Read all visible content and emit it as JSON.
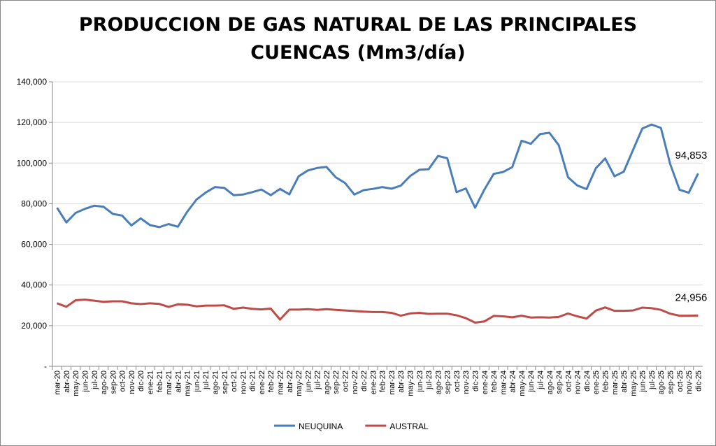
{
  "chart_data": {
    "type": "line",
    "title": [
      "PRODUCCION DE GAS NATURAL DE LAS PRINCIPALES",
      "CUENCAS (Mm3/día)"
    ],
    "categories": [
      "mar-20",
      "abr-20",
      "may-20",
      "jun-20",
      "jul-20",
      "ago-20",
      "sep-20",
      "oct-20",
      "nov-20",
      "dic-20",
      "ene-21",
      "feb-21",
      "mar-21",
      "abr-21",
      "may-21",
      "jun-21",
      "jul-21",
      "ago-21",
      "sep-21",
      "oct-21",
      "nov-21",
      "dic-21",
      "ene-22",
      "feb-22",
      "mar-22",
      "abr-22",
      "may-22",
      "jun-22",
      "jul-22",
      "ago-22",
      "sep-22",
      "oct-22",
      "nov-22",
      "dic-22",
      "ene-23",
      "feb-23",
      "mar-23",
      "abr-23",
      "may-23",
      "jun-23",
      "jul-23",
      "ago-23",
      "sep-23",
      "oct-23",
      "nov-23",
      "dic-23",
      "ene-24",
      "feb-24",
      "mar-24",
      "abr-24",
      "may-24",
      "jun-24",
      "jul-24",
      "ago-24",
      "sep-24",
      "oct-24",
      "nov-24",
      "dic-24",
      "ene-25",
      "feb-25",
      "mar-25",
      "abr-25",
      "may-25",
      "jun-25",
      "jul-25",
      "ago-25",
      "sep-25",
      "oct-25",
      "nov-25",
      "dic-25"
    ],
    "series": [
      {
        "name": "NEUQUINA",
        "color": "#4a7ebb",
        "values": [
          78000,
          70800,
          75500,
          77500,
          79000,
          78500,
          75000,
          74200,
          69300,
          72800,
          69500,
          68500,
          70000,
          68700,
          76000,
          82000,
          85500,
          88200,
          87800,
          84200,
          84500,
          85700,
          87000,
          84200,
          87300,
          84600,
          93500,
          96400,
          97600,
          98100,
          93000,
          90200,
          84500,
          86700,
          87300,
          88200,
          87400,
          88900,
          93600,
          96700,
          97000,
          103500,
          102400,
          85700,
          87500,
          78000,
          87000,
          94700,
          95600,
          98000,
          111000,
          109500,
          114300,
          114900,
          108800,
          93000,
          89000,
          87200,
          97500,
          102300,
          93500,
          95800,
          106500,
          117000,
          119000,
          117300,
          99500,
          86900,
          85400,
          94853
        ],
        "value_labels": [
          null,
          null,
          null,
          null,
          null,
          null,
          null,
          null,
          null,
          null,
          null,
          null,
          null,
          null,
          null,
          null,
          null,
          null,
          null,
          null,
          null,
          null,
          null,
          null,
          null,
          null,
          null,
          null,
          null,
          null,
          null,
          null,
          null,
          null,
          null,
          null,
          null,
          null,
          null,
          null,
          null,
          null,
          null,
          null,
          null,
          null,
          null,
          null,
          null,
          null,
          null,
          null,
          null,
          null,
          null,
          null,
          null,
          null,
          null,
          null,
          null,
          null,
          null,
          null,
          null,
          null,
          null,
          null,
          null,
          "94,853"
        ]
      },
      {
        "name": "AUSTRAL",
        "color": "#be4b48",
        "values": [
          31000,
          29300,
          32500,
          32800,
          32300,
          31700,
          32000,
          32000,
          31000,
          30600,
          31000,
          30700,
          29200,
          30500,
          30300,
          29500,
          29900,
          29900,
          30000,
          28300,
          28900,
          28300,
          28000,
          28400,
          23000,
          27900,
          27900,
          28100,
          27800,
          28100,
          27800,
          27500,
          27200,
          26900,
          26700,
          26700,
          26300,
          24900,
          26000,
          26300,
          25800,
          25900,
          25900,
          25100,
          23700,
          21500,
          22100,
          24800,
          24600,
          24100,
          24900,
          24000,
          24100,
          24000,
          24300,
          26000,
          24600,
          23500,
          27400,
          29000,
          27300,
          27300,
          27500,
          28900,
          28600,
          27800,
          25900,
          24900,
          24900,
          24956
        ],
        "value_labels": [
          null,
          null,
          null,
          null,
          null,
          null,
          null,
          null,
          null,
          null,
          null,
          null,
          null,
          null,
          null,
          null,
          null,
          null,
          null,
          null,
          null,
          null,
          null,
          null,
          null,
          null,
          null,
          null,
          null,
          null,
          null,
          null,
          null,
          null,
          null,
          null,
          null,
          null,
          null,
          null,
          null,
          null,
          null,
          null,
          null,
          null,
          null,
          null,
          null,
          null,
          null,
          null,
          null,
          null,
          null,
          null,
          null,
          null,
          null,
          null,
          null,
          null,
          null,
          null,
          null,
          null,
          null,
          null,
          null,
          "24,956"
        ]
      }
    ],
    "ylim": [
      0,
      140000
    ],
    "yticks": [
      {
        "value": 0,
        "label": "-"
      },
      {
        "value": 20000,
        "label": "20,000"
      },
      {
        "value": 40000,
        "label": "40,000"
      },
      {
        "value": 60000,
        "label": "60,000"
      },
      {
        "value": 80000,
        "label": "80,000"
      },
      {
        "value": 100000,
        "label": "100,000"
      },
      {
        "value": 120000,
        "label": "120,000"
      },
      {
        "value": 140000,
        "label": "140,000"
      }
    ],
    "grid": true,
    "legend": "bottom"
  }
}
